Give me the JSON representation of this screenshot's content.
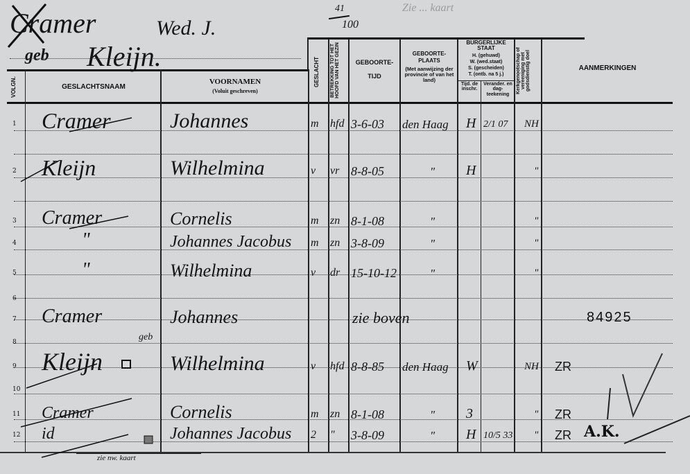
{
  "card": {
    "surname_header": "Cramer",
    "header_suffix": "Wed. J.",
    "maiden_prefix": "geb",
    "maiden_name": "Kleijn.",
    "fraction_top": "41",
    "fraction_bottom": "100",
    "faint_note": "Zie ... kaart",
    "footer_note": "zie nw. kaart",
    "register_number": "84925",
    "stamp": "A.K."
  },
  "columns": {
    "volgn": "VOLGN.",
    "geslachtsnaam": "GESLACHTSNAAM",
    "voornamen": "VOORNAMEN",
    "voornamen_sub": "(Voluit geschreven)",
    "geslacht": "GESLACHT",
    "betrekking": "BETREKKING TOT HET HOOFD VAN HET GEZIN",
    "geboortetijd_1": "GEBOORTE-",
    "geboortetijd_2": "TIJD",
    "geboorteplaats_1": "GEBOORTE-",
    "geboorteplaats_2": "PLAATS",
    "geboorteplaats_sub": "(Met aanwijzing der provincie of van het land)",
    "burgerlijke_staat": "BURGERLIJKE STAAT",
    "burg_h": "H. (gehuwd)",
    "burg_w": "W. (wed.staat)",
    "burg_s": "S. (gescheiden)",
    "burg_t": "T. (ontb. na 5 j.)",
    "burg_tijd": "Tijd. de inschr.",
    "burg_verander": "Verander. en dag-teekening",
    "kerk": "Kerkgenootschap of vereeniging met godsdienstig doel",
    "aanmerkingen": "AANMERKINGEN"
  },
  "row_numbers": [
    "1",
    "2",
    "3",
    "4",
    "5",
    "6",
    "7",
    "8",
    "9",
    "10",
    "11",
    "12"
  ],
  "rows": [
    {
      "no": "1",
      "surname": "Cramer",
      "given": "Johannes",
      "sex": "m",
      "relation": "hfd",
      "born": "3-6-03",
      "place": "den Haag",
      "civil": "H",
      "civil_date": "2/1 07",
      "church": "NH",
      "remarks": ""
    },
    {
      "no": "2",
      "surname": "Kleijn",
      "given": "Wilhelmina",
      "sex": "v",
      "relation": "vr",
      "born": "8-8-05",
      "place": "\"",
      "civil": "H",
      "civil_date": "",
      "church": "\"",
      "remarks": ""
    },
    {
      "no": "3",
      "surname": "Cramer",
      "given": "Cornelis",
      "sex": "m",
      "relation": "zn",
      "born": "8-1-08",
      "place": "\"",
      "civil": "",
      "civil_date": "",
      "church": "\"",
      "remarks": ""
    },
    {
      "no": "4",
      "surname": "\"",
      "given": "Johannes Jacobus",
      "sex": "m",
      "relation": "zn",
      "born": "3-8-09",
      "place": "\"",
      "civil": "",
      "civil_date": "",
      "church": "\"",
      "remarks": ""
    },
    {
      "no": "5",
      "surname": "\"",
      "given": "Wilhelmina",
      "sex": "v",
      "relation": "dr",
      "born": "15-10-12",
      "place": "\"",
      "civil": "",
      "civil_date": "",
      "church": "\"",
      "remarks": ""
    },
    {
      "no": "7",
      "surname": "Cramer",
      "given": "Johannes",
      "sex": "",
      "relation": "",
      "born": "zie boven",
      "place": "",
      "civil": "",
      "civil_date": "",
      "church": "",
      "remarks": ""
    },
    {
      "no": "8",
      "surname": "geb",
      "given": "",
      "sex": "",
      "relation": "",
      "born": "",
      "place": "",
      "civil": "",
      "civil_date": "",
      "church": "",
      "remarks": ""
    },
    {
      "no": "9",
      "surname": "Kleijn",
      "given": "Wilhelmina",
      "sex": "v",
      "relation": "hfd",
      "born": "8-8-85",
      "place": "den Haag",
      "civil": "W",
      "civil_date": "",
      "church": "NH",
      "remarks": "ZR"
    },
    {
      "no": "11",
      "surname": "Cramer",
      "given": "Cornelis",
      "sex": "m",
      "relation": "zn",
      "born": "8-1-08",
      "place": "\"",
      "civil": "3",
      "civil_date": "",
      "church": "\"",
      "remarks": "ZR"
    },
    {
      "no": "12",
      "surname": "id",
      "given": "Johannes Jacobus",
      "sex": "2",
      "relation": "\"",
      "born": "3-8-09",
      "place": "\"",
      "civil": "H",
      "civil_date": "10/5 33",
      "church": "\"",
      "remarks": "ZR"
    }
  ]
}
